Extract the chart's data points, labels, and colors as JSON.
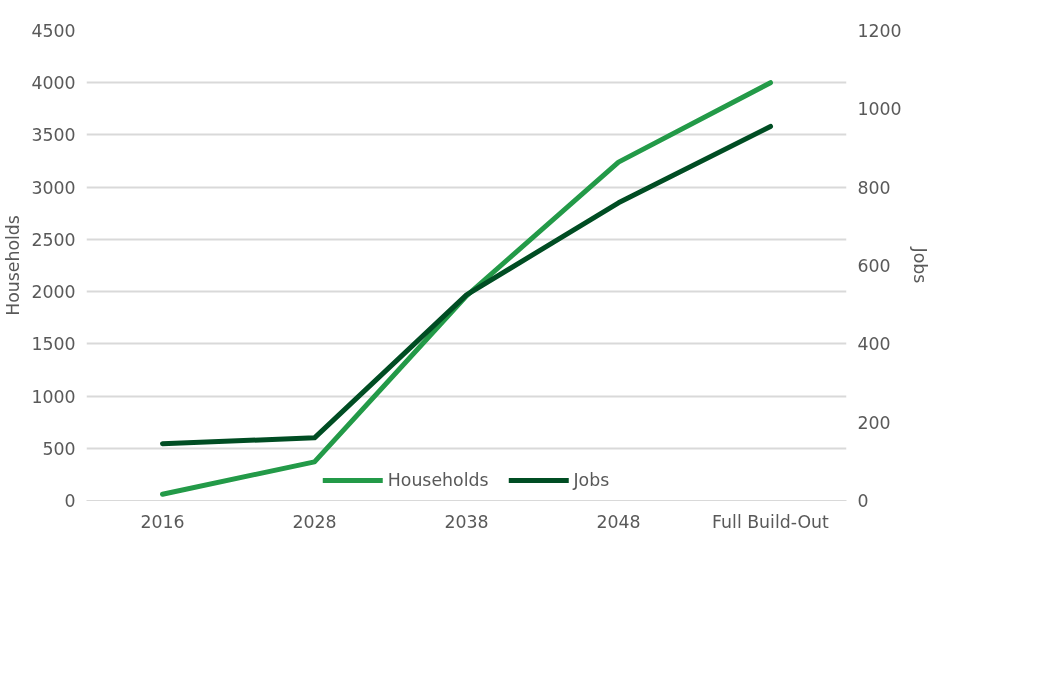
{
  "chart_data": {
    "type": "line",
    "categories": [
      "2016",
      "2028",
      "2038",
      "2048",
      "Full Build-Out"
    ],
    "ylabel": "Households",
    "y2label": "Jobs",
    "ylim": [
      0,
      4500
    ],
    "yticks": [
      0,
      500,
      1000,
      1500,
      2000,
      2500,
      3000,
      3500,
      4000,
      4500
    ],
    "y2lim": [
      0,
      1200
    ],
    "y2ticks": [
      0,
      200,
      400,
      600,
      800,
      1000,
      1200
    ],
    "series": [
      {
        "name": "Households",
        "color": "#239a48",
        "values": [
          60,
          370,
          1960,
          3240,
          4000
        ]
      },
      {
        "name": "Jobs",
        "color": "#004d23",
        "axis": "y2",
        "values": [
          145,
          160,
          525,
          760,
          955
        ]
      }
    ],
    "grid": "y",
    "legend": "bottom",
    "marker": "none",
    "line_style": "solid"
  }
}
